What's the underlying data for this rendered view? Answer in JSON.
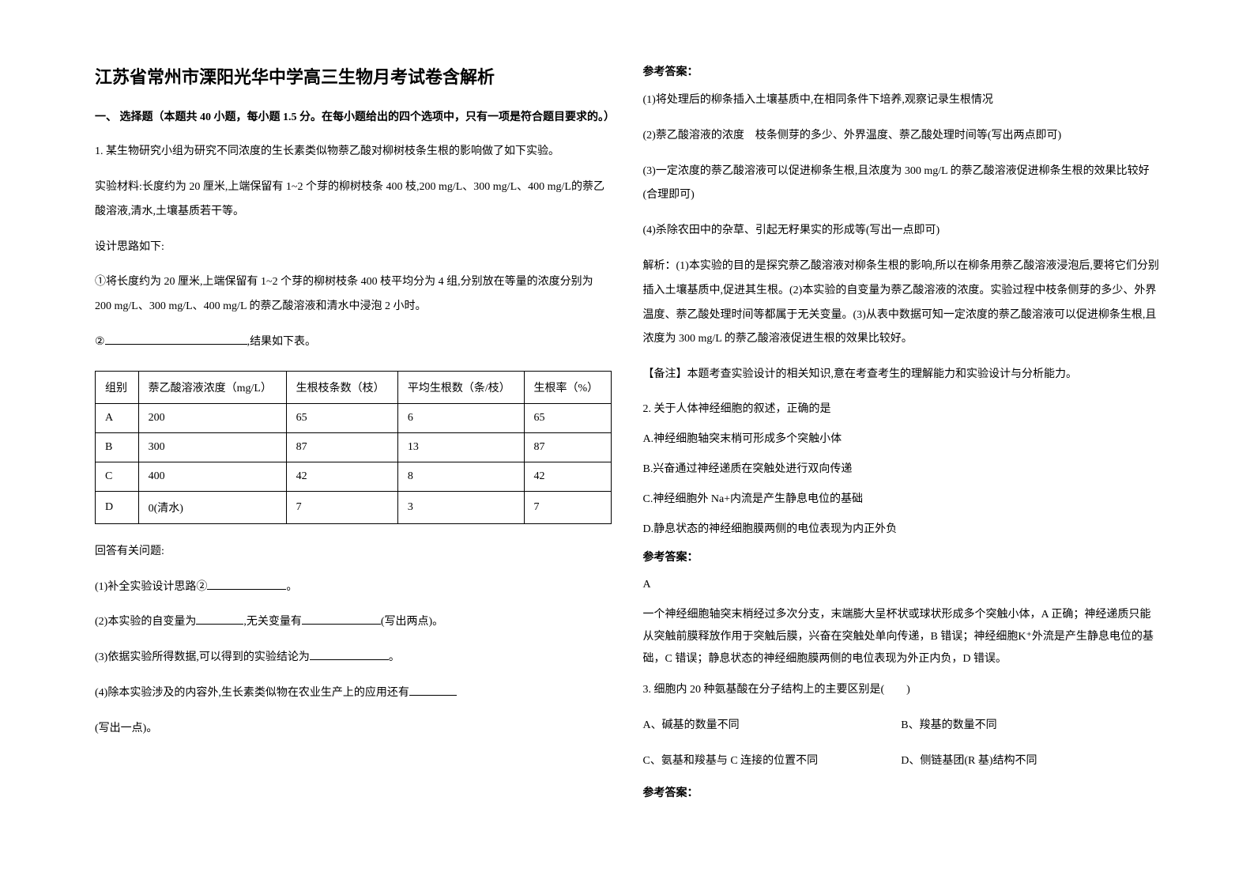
{
  "title": "江苏省常州市溧阳光华中学高三生物月考试卷含解析",
  "section_head": "一、 选择题（本题共 40 小题，每小题 1.5 分。在每小题给出的四个选项中，只有一项是符合题目要求的。）",
  "q1_intro": "1. 某生物研究小组为研究不同浓度的生长素类似物萘乙酸对柳树枝条生根的影响做了如下实验。",
  "q1_material": "实验材料:长度约为 20 厘米,上端保留有 1~2 个芽的柳树枝条 400 枝,200 mg/L、300 mg/L、400 mg/L的萘乙酸溶液,清水,土壤基质若干等。",
  "q1_design": "设计思路如下:",
  "q1_step1": "①将长度约为 20 厘米,上端保留有 1~2 个芽的柳树枝条 400 枝平均分为 4 组,分别放在等量的浓度分别为 200 mg/L、300 mg/L、400 mg/L 的萘乙酸溶液和清水中浸泡 2 小时。",
  "q1_step2_prefix": "②",
  "q1_step2_suffix": ",结果如下表。",
  "table": {
    "headers": [
      "组别",
      "萘乙酸溶液浓度（mg/L）",
      "生根枝条数（枝）",
      "平均生根数（条/枝）",
      "生根率（%）"
    ],
    "rows": [
      [
        "A",
        "200",
        "65",
        "6",
        "65"
      ],
      [
        "B",
        "300",
        "87",
        "13",
        "87"
      ],
      [
        "C",
        "400",
        "42",
        "8",
        "42"
      ],
      [
        "D",
        "0(清水)",
        "7",
        "3",
        "7"
      ]
    ]
  },
  "q1_sub_intro": "回答有关问题:",
  "q1_sub1_pre": "(1)补全实验设计思路②",
  "q1_sub1_post": "。",
  "q1_sub2_pre": "(2)本实验的自变量为",
  "q1_sub2_mid": ",无关变量有",
  "q1_sub2_post": "(写出两点)。",
  "q1_sub3_pre": "(3)依据实验所得数据,可以得到的实验结论为",
  "q1_sub3_post": "。",
  "q1_sub4_pre": "(4)除本实验涉及的内容外,生长素类似物在农业生产上的应用还有",
  "q1_sub4_note": "(写出一点)。",
  "answer_head": "参考答案：",
  "a1": "(1)将处理后的柳条插入土壤基质中,在相同条件下培养,观察记录生根情况",
  "a2": "(2)萘乙酸溶液的浓度　枝条侧芽的多少、外界温度、萘乙酸处理时间等(写出两点即可)",
  "a3": "(3)一定浓度的萘乙酸溶液可以促进柳条生根,且浓度为 300 mg/L 的萘乙酸溶液促进柳条生根的效果比较好(合理即可)",
  "a4": "(4)杀除农田中的杂草、引起无籽果实的形成等(写出一点即可)",
  "explain": "解析：(1)本实验的目的是探究萘乙酸溶液对柳条生根的影响,所以在柳条用萘乙酸溶液浸泡后,要将它们分别插入土壤基质中,促进其生根。(2)本实验的自变量为萘乙酸溶液的浓度。实验过程中枝条侧芽的多少、外界温度、萘乙酸处理时间等都属于无关变量。(3)从表中数据可知一定浓度的萘乙酸溶液可以促进柳条生根,且浓度为 300 mg/L 的萘乙酸溶液促进生根的效果比较好。",
  "note": "【备注】本题考查实验设计的相关知识,意在考查考生的理解能力和实验设计与分析能力。",
  "q2": "2. 关于人体神经细胞的叙述，正确的是",
  "q2a": "A.神经细胞轴突末梢可形成多个突触小体",
  "q2b": "B.兴奋通过神经递质在突触处进行双向传递",
  "q2c": "C.神经细胞外 Na+内流是产生静息电位的基础",
  "q2d": "D.静息状态的神经细胞膜两侧的电位表现为内正外负",
  "q2_answer": "A",
  "q2_explain": "一个神经细胞轴突末梢经过多次分支，末端膨大呈杯状或球状形成多个突触小体，A 正确；神经递质只能从突触前膜释放作用于突触后膜，兴奋在突触处单向传递，B 错误；神经细胞K⁺外流是产生静息电位的基础，C 错误；静息状态的神经细胞膜两侧的电位表现为外正内负，D 错误。",
  "q3": "3. 细胞内 20 种氨基酸在分子结构上的主要区别是(　　)",
  "q3a": "A、碱基的数量不同",
  "q3b": "B、羧基的数量不同",
  "q3c": "C、氨基和羧基与 C 连接的位置不同",
  "q3d": "D、侧链基团(R 基)结构不同"
}
